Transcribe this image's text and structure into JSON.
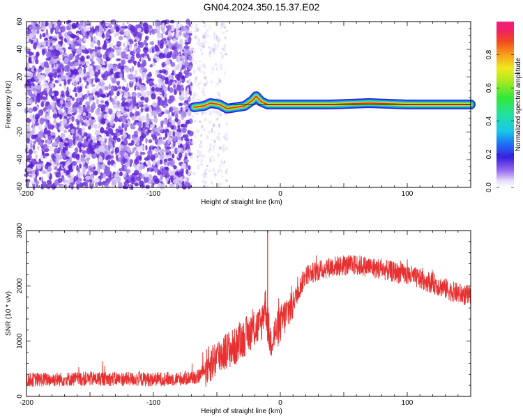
{
  "title": "GN04.2024.350.15.37.E02",
  "chart_data": [
    {
      "type": "heatmap",
      "xlabel": "Height of straight line (km)",
      "ylabel": "Frequency (Hz)",
      "xlim": [
        -200,
        150
      ],
      "ylim": [
        -60,
        60
      ],
      "xticks": [
        -200,
        -100,
        0,
        100
      ],
      "yticks": [
        60,
        40,
        20,
        0,
        -20,
        -40,
        -60
      ],
      "colorbar": {
        "label": "Normalized spectral amplitude",
        "range": [
          0,
          1
        ],
        "ticks": [
          "0.0",
          "0.2",
          "0.4",
          "0.6",
          "0.8"
        ]
      },
      "features": {
        "noise_region_x": [
          -200,
          -70
        ],
        "sparse_region_x": [
          -70,
          -42
        ],
        "signal_track": [
          {
            "x": -68,
            "y": -2
          },
          {
            "x": -60,
            "y": -1
          },
          {
            "x": -55,
            "y": 1
          },
          {
            "x": -48,
            "y": 0
          },
          {
            "x": -42,
            "y": -3
          },
          {
            "x": -35,
            "y": -2
          },
          {
            "x": -28,
            "y": -1
          },
          {
            "x": -22,
            "y": 3
          },
          {
            "x": -19,
            "y": 6
          },
          {
            "x": -15,
            "y": 2
          },
          {
            "x": -10,
            "y": 0
          },
          {
            "x": 0,
            "y": 0
          },
          {
            "x": 40,
            "y": 0
          },
          {
            "x": 70,
            "y": 1
          },
          {
            "x": 100,
            "y": 0
          },
          {
            "x": 150,
            "y": 0
          }
        ]
      }
    },
    {
      "type": "line",
      "xlabel": "Height of straight line (km)",
      "ylabel": "SNR (10 * v/v)",
      "xlim": [
        -200,
        150
      ],
      "ylim": [
        0,
        3000
      ],
      "xticks": [
        -200,
        -100,
        0,
        100
      ],
      "yticks": [
        0,
        1000,
        2000,
        3000
      ],
      "color": "#e83030",
      "envelope": [
        {
          "x": -200,
          "y": 300
        },
        {
          "x": -150,
          "y": 320
        },
        {
          "x": -100,
          "y": 310
        },
        {
          "x": -80,
          "y": 320
        },
        {
          "x": -65,
          "y": 350
        },
        {
          "x": -55,
          "y": 600
        },
        {
          "x": -45,
          "y": 800
        },
        {
          "x": -35,
          "y": 900
        },
        {
          "x": -25,
          "y": 1150
        },
        {
          "x": -15,
          "y": 1300
        },
        {
          "x": -12,
          "y": 1700
        },
        {
          "x": -8,
          "y": 1000
        },
        {
          "x": 0,
          "y": 1300
        },
        {
          "x": 10,
          "y": 1700
        },
        {
          "x": 20,
          "y": 2200
        },
        {
          "x": 40,
          "y": 2350
        },
        {
          "x": 60,
          "y": 2380
        },
        {
          "x": 80,
          "y": 2300
        },
        {
          "x": 100,
          "y": 2200
        },
        {
          "x": 120,
          "y": 2050
        },
        {
          "x": 135,
          "y": 1900
        },
        {
          "x": 150,
          "y": 1800
        }
      ],
      "spike": {
        "x": -10,
        "y": 3000
      }
    }
  ]
}
